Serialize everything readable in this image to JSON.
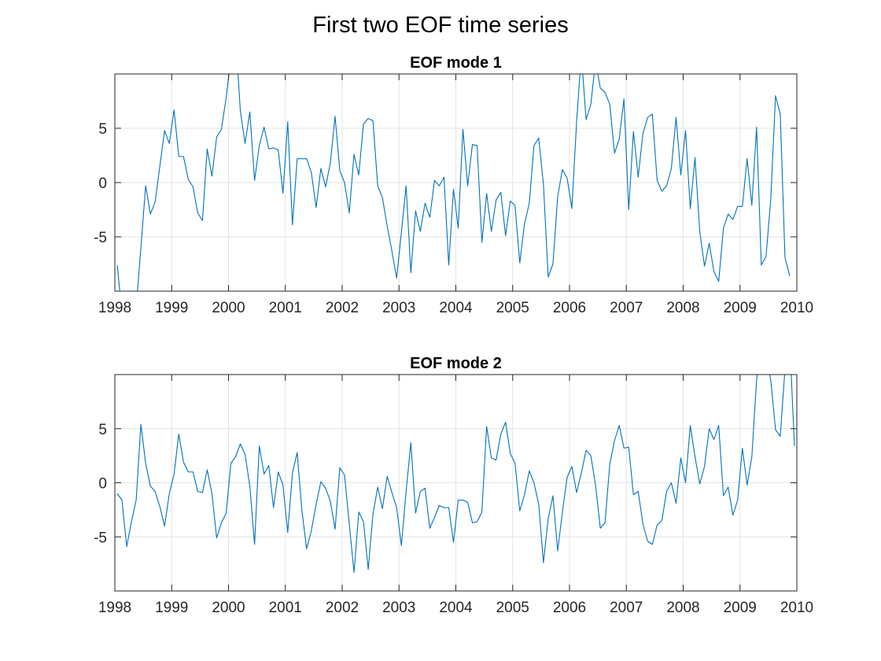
{
  "figure": {
    "title": "First two EOF time series"
  },
  "chart_data": [
    {
      "type": "line",
      "title": "EOF mode 1",
      "xlabel": "",
      "ylabel": "",
      "xlim": [
        1998,
        2010
      ],
      "ylim": [
        -10,
        10
      ],
      "xticks": [
        1998,
        1999,
        2000,
        2001,
        2002,
        2003,
        2004,
        2005,
        2006,
        2007,
        2008,
        2009,
        2010
      ],
      "yticks": [
        -5,
        0,
        5
      ],
      "grid": true,
      "line_color": "#0072BD",
      "series": [
        {
          "x_start": 1998.0417,
          "x_step": 0.0833333,
          "values": [
            -7.6,
            -12.0,
            -13.0,
            -12.5,
            -11.5,
            -6.0,
            -0.3,
            -2.9,
            -1.8,
            1.5,
            4.8,
            3.6,
            6.7,
            2.4,
            2.4,
            0.3,
            -0.4,
            -2.8,
            -3.5,
            3.1,
            0.6,
            4.2,
            4.9,
            7.8,
            11.5,
            13.5,
            6.6,
            3.6,
            6.5,
            0.2,
            3.4,
            5.1,
            3.1,
            3.2,
            3.0,
            -1.0,
            5.6,
            -3.9,
            2.2,
            2.2,
            2.2,
            0.9,
            -2.3,
            1.3,
            -0.4,
            1.8,
            6.1,
            1.1,
            0.0,
            -2.8,
            2.6,
            0.7,
            5.4,
            5.9,
            5.7,
            -0.3,
            -1.4,
            -4.0,
            -6.3,
            -8.8,
            -4.6,
            -0.3,
            -8.3,
            -2.6,
            -4.5,
            -1.9,
            -3.2,
            0.2,
            -0.3,
            0.5,
            -7.6,
            -0.6,
            -4.2,
            4.9,
            -0.3,
            3.5,
            3.4,
            -5.5,
            -1.0,
            -4.5,
            -1.6,
            -0.9,
            -4.9,
            -1.7,
            -2.1,
            -7.4,
            -3.8,
            -1.9,
            3.4,
            4.1,
            -0.2,
            -8.7,
            -7.5,
            -1.3,
            1.2,
            0.4,
            -2.4,
            5.6,
            11.8,
            5.8,
            7.2,
            11.2,
            8.7,
            8.3,
            7.2,
            2.7,
            4.0,
            7.7,
            -2.5,
            4.7,
            0.5,
            4.5,
            6.0,
            6.3,
            0.2,
            -0.8,
            -0.3,
            1.3,
            6.0,
            0.7,
            4.8,
            -2.4,
            2.3,
            -4.5,
            -7.7,
            -5.6,
            -8.2,
            -9.1,
            -4.2,
            -2.9,
            -3.4,
            -2.2,
            -2.2,
            2.2,
            -2.1,
            5.1,
            -7.6,
            -6.8,
            -1.5,
            8.0,
            6.3,
            -6.9,
            -8.6
          ]
        }
      ]
    },
    {
      "type": "line",
      "title": "EOF mode 2",
      "xlabel": "",
      "ylabel": "",
      "xlim": [
        1998,
        2010
      ],
      "ylim": [
        -10,
        10
      ],
      "xticks": [
        1998,
        1999,
        2000,
        2001,
        2002,
        2003,
        2004,
        2005,
        2006,
        2007,
        2008,
        2009,
        2010
      ],
      "yticks": [
        -5,
        0,
        5
      ],
      "grid": true,
      "line_color": "#0072BD",
      "series": [
        {
          "x_start": 1998.0417,
          "x_step": 0.0833333,
          "values": [
            -1.0,
            -1.6,
            -5.9,
            -3.6,
            -1.6,
            5.4,
            1.8,
            -0.3,
            -0.8,
            -2.2,
            -4.0,
            -1.0,
            0.8,
            4.5,
            1.9,
            1.0,
            1.0,
            -0.8,
            -0.9,
            1.2,
            -1.0,
            -5.1,
            -3.7,
            -2.8,
            1.8,
            2.4,
            3.6,
            2.6,
            -0.3,
            -5.7,
            3.4,
            0.8,
            1.6,
            -2.3,
            1.0,
            -0.2,
            -4.6,
            0.9,
            2.8,
            -2.6,
            -6.1,
            -4.4,
            -2.0,
            0.1,
            -0.5,
            -1.7,
            -4.3,
            1.4,
            0.7,
            -3.8,
            -8.3,
            -2.7,
            -3.6,
            -8.0,
            -2.9,
            -0.4,
            -2.4,
            0.6,
            -0.9,
            -2.3,
            -5.8,
            -0.8,
            3.7,
            -2.8,
            -0.8,
            -0.5,
            -4.2,
            -3.2,
            -2.1,
            -2.3,
            -2.3,
            -5.5,
            -1.6,
            -1.6,
            -1.8,
            -3.7,
            -3.6,
            -2.7,
            5.2,
            2.3,
            2.1,
            4.5,
            5.6,
            2.7,
            1.8,
            -2.6,
            -1.1,
            1.1,
            0.0,
            -2.0,
            -7.4,
            -3.3,
            -1.2,
            -6.3,
            -2.7,
            0.5,
            1.5,
            -0.9,
            0.9,
            3.0,
            2.5,
            -0.2,
            -4.2,
            -3.7,
            1.7,
            3.9,
            5.3,
            3.2,
            3.3,
            -1.1,
            -0.8,
            -3.8,
            -5.4,
            -5.7,
            -3.9,
            -3.5,
            -0.8,
            0.0,
            -1.9,
            2.3,
            0.0,
            5.3,
            2.4,
            -0.1,
            1.5,
            5.0,
            4.0,
            5.3,
            -1.2,
            -0.4,
            -3.0,
            -1.6,
            3.2,
            -0.2,
            2.4,
            9.5,
            13.0,
            11.5,
            9.5,
            4.9,
            4.3,
            10.5,
            13.0,
            3.4
          ]
        }
      ]
    }
  ]
}
